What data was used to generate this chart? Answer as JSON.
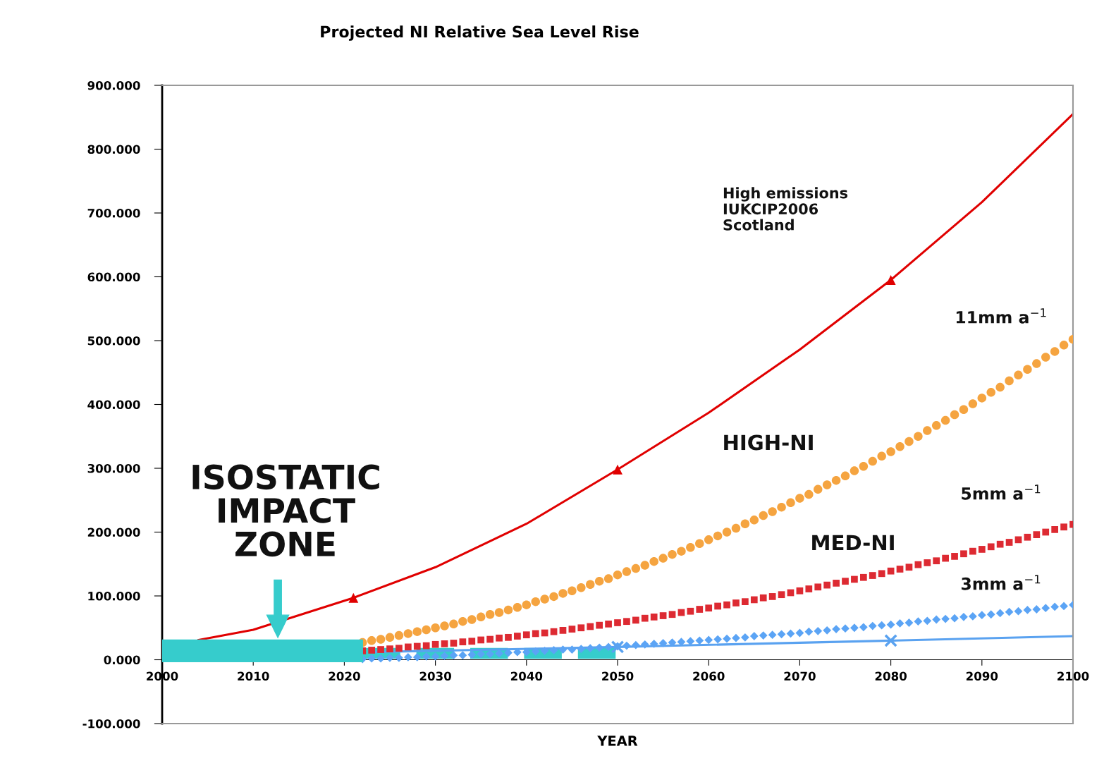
{
  "chart_data": {
    "type": "line",
    "title": "Projected NI Relative Sea Level Rise",
    "xlabel": "YEAR",
    "xlim": [
      2000,
      2100
    ],
    "xticks": [
      2000,
      2010,
      2020,
      2030,
      2040,
      2050,
      2060,
      2070,
      2080,
      2090,
      2100
    ],
    "ylim": [
      -100,
      900
    ],
    "yticks": [
      {
        "value": -100,
        "label": "-100.000"
      },
      {
        "value": 0,
        "label": "0.000"
      },
      {
        "value": 100,
        "label": "100.000"
      },
      {
        "value": 200,
        "label": "200.000"
      },
      {
        "value": 300,
        "label": "300.000"
      },
      {
        "value": 400,
        "label": "400.000"
      },
      {
        "value": 500,
        "label": "500.000"
      },
      {
        "value": 600,
        "label": "600.000"
      },
      {
        "value": 700,
        "label": "700.000"
      },
      {
        "value": 800,
        "label": "800.000"
      },
      {
        "value": 900,
        "label": "900.000"
      }
    ],
    "grid": false,
    "legend": false,
    "series": [
      {
        "type": "line",
        "color": "#e00000",
        "marker": "none",
        "x": [
          2004,
          2010,
          2021,
          2030,
          2040,
          2050,
          2060,
          2070,
          2080,
          2090,
          2100
        ],
        "values": [
          31,
          47,
          97,
          145,
          213,
          298,
          387,
          486,
          595,
          717,
          855
        ]
      },
      {
        "type": "line",
        "color": "#36cccc",
        "marker": "none",
        "line_style": "dashed",
        "x": [
          2022,
          2051
        ],
        "values": [
          10,
          10
        ]
      },
      {
        "type": "scatter",
        "color": "#e00000",
        "marker": "triangle",
        "x": [
          2021,
          2050,
          2080
        ],
        "values": [
          97,
          298,
          595
        ]
      },
      {
        "type": "scatter",
        "color": "#f5a440",
        "marker": "circle",
        "x": [
          2022,
          2023,
          2024,
          2025,
          2026,
          2027,
          2028,
          2029,
          2030,
          2031,
          2032,
          2033,
          2034,
          2035,
          2036,
          2037,
          2038,
          2039,
          2040,
          2041,
          2042,
          2043,
          2044,
          2045,
          2046,
          2047,
          2048,
          2049,
          2050,
          2051,
          2052,
          2053,
          2054,
          2055,
          2056,
          2057,
          2058,
          2059,
          2060,
          2061,
          2062,
          2063,
          2064,
          2065,
          2066,
          2067,
          2068,
          2069,
          2070,
          2071,
          2072,
          2073,
          2074,
          2075,
          2076,
          2077,
          2078,
          2079,
          2080,
          2081,
          2082,
          2083,
          2084,
          2085,
          2086,
          2087,
          2088,
          2089,
          2090,
          2091,
          2092,
          2093,
          2094,
          2095,
          2096,
          2097,
          2098,
          2099,
          2100
        ],
        "values": [
          27,
          30,
          32,
          35,
          38,
          41,
          44,
          47,
          50,
          53,
          56,
          60,
          63,
          67,
          71,
          74,
          78,
          82,
          86,
          91,
          95,
          99,
          104,
          108,
          113,
          118,
          123,
          127,
          133,
          138,
          143,
          148,
          154,
          159,
          165,
          170,
          176,
          182,
          188,
          194,
          200,
          206,
          213,
          219,
          226,
          232,
          239,
          246,
          253,
          259,
          267,
          274,
          281,
          288,
          296,
          303,
          311,
          319,
          326,
          334,
          342,
          350,
          359,
          367,
          375,
          384,
          392,
          401,
          410,
          419,
          427,
          437,
          446,
          455,
          464,
          474,
          483,
          493,
          502
        ]
      },
      {
        "type": "scatter",
        "color": "#dd2a32",
        "marker": "square",
        "x": [
          2022,
          2023,
          2024,
          2025,
          2026,
          2027,
          2028,
          2029,
          2030,
          2031,
          2032,
          2033,
          2034,
          2035,
          2036,
          2037,
          2038,
          2039,
          2040,
          2041,
          2042,
          2043,
          2044,
          2045,
          2046,
          2047,
          2048,
          2049,
          2050,
          2051,
          2052,
          2053,
          2054,
          2055,
          2056,
          2057,
          2058,
          2059,
          2060,
          2061,
          2062,
          2063,
          2064,
          2065,
          2066,
          2067,
          2068,
          2069,
          2070,
          2071,
          2072,
          2073,
          2074,
          2075,
          2076,
          2077,
          2078,
          2079,
          2080,
          2081,
          2082,
          2083,
          2084,
          2085,
          2086,
          2087,
          2088,
          2089,
          2090,
          2091,
          2092,
          2093,
          2094,
          2095,
          2096,
          2097,
          2098,
          2099,
          2100
        ],
        "values": [
          14,
          15,
          16,
          17,
          18,
          20,
          21,
          22,
          24,
          25,
          26,
          28,
          29,
          31,
          32,
          34,
          35,
          37,
          39,
          41,
          42,
          44,
          46,
          48,
          50,
          52,
          54,
          56,
          58,
          60,
          62,
          65,
          67,
          69,
          71,
          74,
          76,
          79,
          81,
          84,
          86,
          89,
          91,
          94,
          97,
          99,
          102,
          105,
          108,
          111,
          114,
          117,
          120,
          123,
          126,
          129,
          132,
          135,
          139,
          142,
          145,
          149,
          152,
          155,
          159,
          162,
          166,
          170,
          173,
          177,
          181,
          184,
          188,
          192,
          196,
          200,
          204,
          208,
          212
        ]
      },
      {
        "type": "scatter",
        "color": "#5ba4f5",
        "marker": "diamond",
        "x": [
          2022,
          2023,
          2024,
          2025,
          2026,
          2027,
          2028,
          2029,
          2030,
          2031,
          2032,
          2033,
          2034,
          2035,
          2036,
          2037,
          2038,
          2039,
          2040,
          2041,
          2042,
          2043,
          2044,
          2045,
          2046,
          2047,
          2048,
          2049,
          2050,
          2051,
          2052,
          2053,
          2054,
          2055,
          2056,
          2057,
          2058,
          2059,
          2060,
          2061,
          2062,
          2063,
          2064,
          2065,
          2066,
          2067,
          2068,
          2069,
          2070,
          2071,
          2072,
          2073,
          2074,
          2075,
          2076,
          2077,
          2078,
          2079,
          2080,
          2081,
          2082,
          2083,
          2084,
          2085,
          2086,
          2087,
          2088,
          2089,
          2090,
          2091,
          2092,
          2093,
          2094,
          2095,
          2096,
          2097,
          2098,
          2099,
          2100
        ],
        "values": [
          1,
          2,
          2,
          3,
          3,
          4,
          4,
          5,
          5,
          6,
          7,
          7,
          8,
          9,
          9,
          10,
          11,
          12,
          12,
          13,
          14,
          15,
          16,
          16,
          17,
          18,
          19,
          20,
          21,
          22,
          23,
          24,
          25,
          26,
          27,
          28,
          29,
          30,
          31,
          32,
          33,
          34,
          35,
          37,
          38,
          39,
          40,
          41,
          42,
          44,
          45,
          46,
          48,
          49,
          50,
          51,
          53,
          54,
          55,
          57,
          58,
          60,
          61,
          63,
          64,
          65,
          67,
          68,
          70,
          71,
          73,
          75,
          76,
          78,
          79,
          81,
          83,
          84,
          86
        ]
      },
      {
        "type": "line",
        "color": "#5aa2f0",
        "marker": "none",
        "x": [
          2023,
          2050,
          2080,
          2100
        ],
        "values": [
          12,
          20,
          30,
          37
        ]
      },
      {
        "type": "scatter",
        "color": "#5aa2f0",
        "marker": "cross",
        "x": [
          2050,
          2080
        ],
        "values": [
          20,
          30
        ]
      }
    ],
    "annotations": [
      "High emissions\nIUKCIP2006\nScotland",
      "11mm a$^{−1}$",
      "HIGH-NI",
      "5mm a$^{−1}$",
      "MED-NI",
      "3mm a$^{−1}$",
      "ISOSTATIC\nIMPACT\nZONE"
    ]
  }
}
